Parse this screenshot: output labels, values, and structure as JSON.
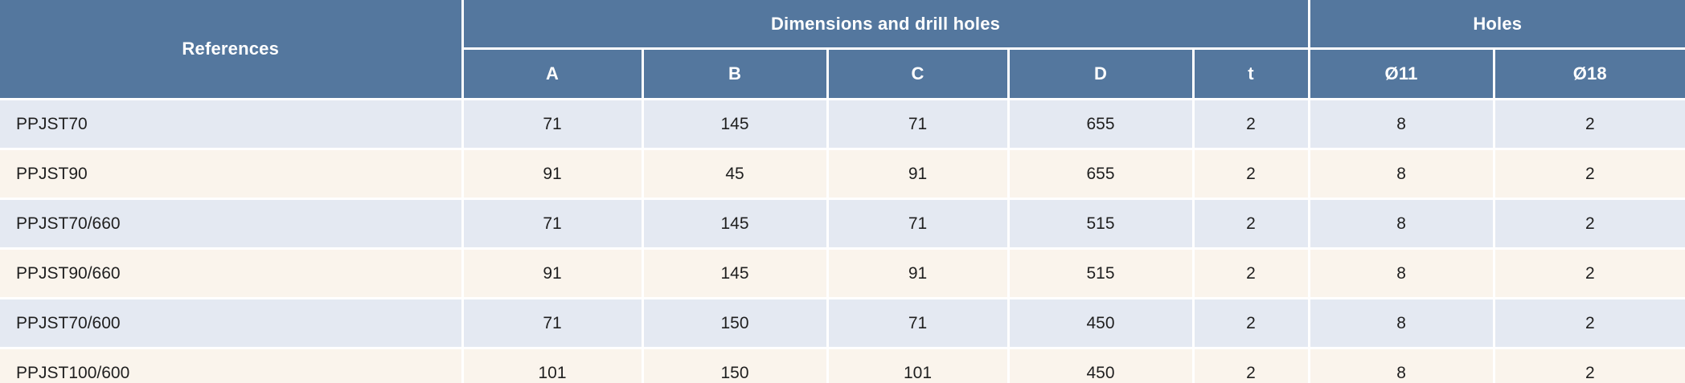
{
  "table": {
    "header": {
      "references_label": "References",
      "group_dimensions": "Dimensions and drill holes",
      "group_holes": "Holes",
      "columns": {
        "a": "A",
        "b": "B",
        "c": "C",
        "d": "D",
        "t": "t",
        "o11": "Ø11",
        "o18": "Ø18"
      }
    },
    "rows": [
      {
        "reference": "PPJST70",
        "a": "71",
        "b": "145",
        "c": "71",
        "d": "655",
        "t": "2",
        "o11": "8",
        "o18": "2"
      },
      {
        "reference": "PPJST90",
        "a": "91",
        "b": "45",
        "c": "91",
        "d": "655",
        "t": "2",
        "o11": "8",
        "o18": "2"
      },
      {
        "reference": "PPJST70/660",
        "a": "71",
        "b": "145",
        "c": "71",
        "d": "515",
        "t": "2",
        "o11": "8",
        "o18": "2"
      },
      {
        "reference": "PPJST90/660",
        "a": "91",
        "b": "145",
        "c": "91",
        "d": "515",
        "t": "2",
        "o11": "8",
        "o18": "2"
      },
      {
        "reference": "PPJST70/600",
        "a": "71",
        "b": "150",
        "c": "71",
        "d": "450",
        "t": "2",
        "o11": "8",
        "o18": "2"
      },
      {
        "reference": "PPJST100/600",
        "a": "101",
        "b": "150",
        "c": "101",
        "d": "450",
        "t": "2",
        "o11": "8",
        "o18": "2"
      }
    ],
    "colors": {
      "header_bg": "#54779e",
      "row_even_bg": "#e4e9f2",
      "row_odd_bg": "#faf4ec",
      "grid_line": "#ffffff",
      "header_text": "#ffffff",
      "data_text": "#1f1f1f"
    }
  }
}
